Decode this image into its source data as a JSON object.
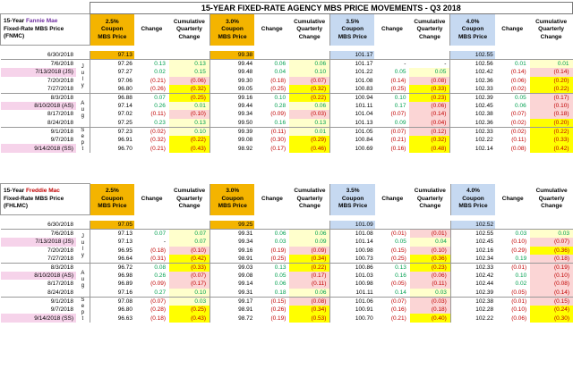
{
  "title": "15-YEAR FIXED-RATE AGENCY MBS PRICE MOVEMENTS - Q3 2018",
  "columns": {
    "coupons": [
      "2.5%\nCoupon\nMBS Price",
      "3.0%\nCoupon\nMBS Price",
      "3.5%\nCoupon\nMBS Price",
      "4.0%\nCoupon\nMBS Price"
    ],
    "change": "Change",
    "cumulative": "Cumulative Quarterly Change"
  },
  "months": {
    "july": "July",
    "aug": "Aug",
    "sept": "Sept"
  },
  "fnmc": {
    "line1_prefix": "15-Year",
    "line1_name": "Fannie Mae",
    "line2": "Fixed-Rate MBS Price",
    "line3": "(FNMC)",
    "rows": [
      [
        "6/30/2018",
        "97.13",
        "",
        "",
        "99.38",
        "",
        "",
        "101.17",
        "",
        "",
        "102.55",
        "",
        ""
      ],
      [
        "7/6/2018",
        "97.26",
        "0.13",
        "0.13",
        "99.44",
        "0.06",
        "0.06",
        "101.17",
        "-",
        "-",
        "102.56",
        "0.01",
        "0.01"
      ],
      [
        "7/13/2018 (JS)",
        "97.27",
        "0.02",
        "0.15",
        "99.48",
        "0.04",
        "0.10",
        "101.22",
        "0.05",
        "0.05",
        "102.42",
        "(0.14)",
        "(0.14)"
      ],
      [
        "7/20/2018",
        "97.06",
        "(0.21)",
        "(0.06)",
        "99.30",
        "(0.18)",
        "(0.07)",
        "101.08",
        "(0.14)",
        "(0.08)",
        "102.36",
        "(0.06)",
        "(0.20)"
      ],
      [
        "7/27/2018",
        "96.80",
        "(0.26)",
        "(0.32)",
        "99.05",
        "(0.25)",
        "(0.32)",
        "100.83",
        "(0.25)",
        "(0.33)",
        "102.33",
        "(0.02)",
        "(0.22)"
      ],
      [
        "8/3/2018",
        "96.88",
        "0.07",
        "(0.25)",
        "99.16",
        "0.10",
        "(0.22)",
        "100.94",
        "0.10",
        "(0.23)",
        "102.39",
        "0.05",
        "(0.17)"
      ],
      [
        "8/10/2018 (AS)",
        "97.14",
        "0.26",
        "0.01",
        "99.44",
        "0.28",
        "0.06",
        "101.11",
        "0.17",
        "(0.06)",
        "102.45",
        "0.06",
        "(0.10)"
      ],
      [
        "8/17/2018",
        "97.02",
        "(0.11)",
        "(0.10)",
        "99.34",
        "(0.09)",
        "(0.03)",
        "101.04",
        "(0.07)",
        "(0.14)",
        "102.38",
        "(0.07)",
        "(0.18)"
      ],
      [
        "8/24/2018",
        "97.25",
        "0.23",
        "0.13",
        "99.50",
        "0.16",
        "0.13",
        "101.13",
        "0.09",
        "(0.04)",
        "102.36",
        "(0.02)",
        "(0.20)"
      ],
      [
        "9/1/2018",
        "97.23",
        "(0.02)",
        "0.10",
        "99.39",
        "(0.11)",
        "0.01",
        "101.05",
        "(0.07)",
        "(0.12)",
        "102.33",
        "(0.02)",
        "(0.22)"
      ],
      [
        "9/7/2018",
        "96.91",
        "(0.32)",
        "(0.22)",
        "99.08",
        "(0.30)",
        "(0.29)",
        "100.84",
        "(0.21)",
        "(0.32)",
        "102.22",
        "(0.11)",
        "(0.33)"
      ],
      [
        "9/14/2018 (SS)",
        "96.70",
        "(0.21)",
        "(0.43)",
        "98.92",
        "(0.17)",
        "(0.46)",
        "100.69",
        "(0.16)",
        "(0.48)",
        "102.14",
        "(0.08)",
        "(0.42)"
      ]
    ]
  },
  "fhlmc": {
    "line1_prefix": "15-Year",
    "line1_name": "Freddie Mac",
    "line2": "Fixed-Rate MBS Price",
    "line3": "(FHLMC)",
    "rows": [
      [
        "6/30/2018",
        "97.05",
        "",
        "",
        "99.25",
        "",
        "",
        "101.09",
        "",
        "",
        "102.52",
        "",
        ""
      ],
      [
        "7/6/2018",
        "97.13",
        "0.07",
        "0.07",
        "99.31",
        "0.06",
        "0.06",
        "101.08",
        "(0.01)",
        "(0.01)",
        "102.55",
        "0.03",
        "0.03"
      ],
      [
        "7/13/2018 (JS)",
        "97.13",
        "-",
        "0.07",
        "99.34",
        "0.03",
        "0.09",
        "101.14",
        "0.05",
        "0.04",
        "102.45",
        "(0.10)",
        "(0.07)"
      ],
      [
        "7/20/2018",
        "96.95",
        "(0.18)",
        "(0.10)",
        "99.16",
        "(0.19)",
        "(0.09)",
        "100.98",
        "(0.15)",
        "(0.10)",
        "102.16",
        "(0.29)",
        "(0.36)"
      ],
      [
        "7/27/2018",
        "96.64",
        "(0.31)",
        "(0.42)",
        "98.91",
        "(0.25)",
        "(0.34)",
        "100.73",
        "(0.25)",
        "(0.36)",
        "102.34",
        "0.19",
        "(0.18)"
      ],
      [
        "8/3/2018",
        "96.72",
        "0.08",
        "(0.33)",
        "99.03",
        "0.13",
        "(0.22)",
        "100.86",
        "0.13",
        "(0.23)",
        "102.33",
        "(0.01)",
        "(0.19)"
      ],
      [
        "8/10/2018 (AS)",
        "96.98",
        "0.26",
        "(0.07)",
        "99.08",
        "0.05",
        "(0.17)",
        "101.03",
        "0.16",
        "(0.06)",
        "102.42",
        "0.10",
        "(0.10)"
      ],
      [
        "8/17/2018",
        "96.89",
        "(0.09)",
        "(0.17)",
        "99.14",
        "0.06",
        "(0.11)",
        "100.98",
        "(0.05)",
        "(0.11)",
        "102.44",
        "0.02",
        "(0.08)"
      ],
      [
        "8/24/2018",
        "97.16",
        "0.27",
        "0.10",
        "99.31",
        "0.18",
        "0.06",
        "101.11",
        "0.14",
        "0.03",
        "102.39",
        "(0.05)",
        "(0.14)"
      ],
      [
        "9/1/2018",
        "97.08",
        "(0.07)",
        "0.03",
        "99.17",
        "(0.15)",
        "(0.08)",
        "101.06",
        "(0.07)",
        "(0.03)",
        "102.38",
        "(0.01)",
        "(0.15)"
      ],
      [
        "9/7/2018",
        "96.80",
        "(0.28)",
        "(0.25)",
        "98.91",
        "(0.26)",
        "(0.34)",
        "100.91",
        "(0.16)",
        "(0.18)",
        "102.28",
        "(0.10)",
        "(0.24)"
      ],
      [
        "9/14/2018 (SS)",
        "96.63",
        "(0.18)",
        "(0.43)",
        "98.72",
        "(0.19)",
        "(0.53)",
        "100.70",
        "(0.21)",
        "(0.40)",
        "102.22",
        "(0.06)",
        "(0.30)"
      ]
    ]
  }
}
